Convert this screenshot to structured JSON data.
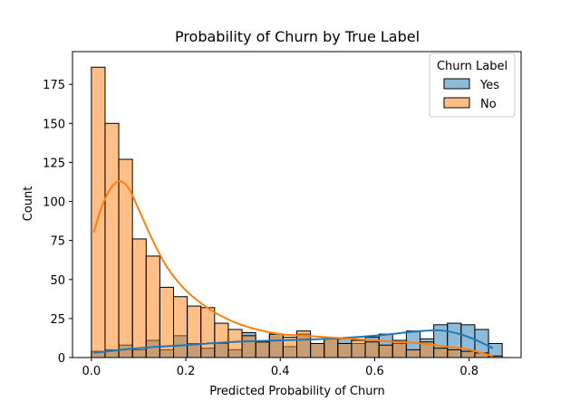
{
  "chart_data": {
    "type": "histogram",
    "title": "Probability of Churn by True Label",
    "xlabel": "Predicted Probability of Churn",
    "ylabel": "Count",
    "xlim": [
      -0.04,
      0.91
    ],
    "ylim": [
      0,
      196
    ],
    "xticks": [
      0.0,
      0.2,
      0.4,
      0.6,
      0.8
    ],
    "xtick_labels": [
      "0.0",
      "0.2",
      "0.4",
      "0.6",
      "0.8"
    ],
    "yticks": [
      0,
      25,
      50,
      75,
      100,
      125,
      150,
      175
    ],
    "ytick_labels": [
      "0",
      "25",
      "50",
      "75",
      "100",
      "125",
      "150",
      "175"
    ],
    "grid": false,
    "legend": {
      "title": "Churn Label",
      "placement": "top-right"
    },
    "bins": {
      "start": 0.0,
      "width": 0.029,
      "count": 30
    },
    "series": [
      {
        "name": "Yes",
        "color": "#1f77b4",
        "fill": "#7fb2d9",
        "counts": [
          4,
          5,
          8,
          5,
          11,
          5,
          14,
          9,
          6,
          9,
          5,
          16,
          10,
          15,
          7,
          15,
          9,
          12,
          12,
          9,
          13,
          15,
          9,
          17,
          12,
          21,
          22,
          21,
          18,
          9
        ],
        "kde": [
          [
            0.005,
            3
          ],
          [
            0.1,
            6
          ],
          [
            0.2,
            8
          ],
          [
            0.3,
            10
          ],
          [
            0.4,
            11
          ],
          [
            0.5,
            12
          ],
          [
            0.6,
            14
          ],
          [
            0.7,
            17
          ],
          [
            0.75,
            17
          ],
          [
            0.8,
            13
          ],
          [
            0.85,
            6
          ]
        ]
      },
      {
        "name": "No",
        "color": "#ff7f0e",
        "fill": "#ffbf86",
        "counts": [
          186,
          150,
          127,
          76,
          65,
          45,
          39,
          33,
          32,
          22,
          18,
          14,
          10,
          15,
          13,
          17,
          9,
          12,
          9,
          11,
          10,
          8,
          11,
          5,
          10,
          6,
          5,
          4,
          3,
          1
        ],
        "kde": [
          [
            0.005,
            80
          ],
          [
            0.02,
            95
          ],
          [
            0.04,
            108
          ],
          [
            0.06,
            113
          ],
          [
            0.08,
            108
          ],
          [
            0.1,
            95
          ],
          [
            0.13,
            75
          ],
          [
            0.16,
            58
          ],
          [
            0.2,
            43
          ],
          [
            0.25,
            31
          ],
          [
            0.3,
            23
          ],
          [
            0.35,
            18
          ],
          [
            0.4,
            15
          ],
          [
            0.45,
            14
          ],
          [
            0.5,
            13
          ],
          [
            0.55,
            12
          ],
          [
            0.6,
            11
          ],
          [
            0.65,
            10
          ],
          [
            0.7,
            9
          ],
          [
            0.75,
            7
          ],
          [
            0.8,
            5
          ],
          [
            0.85,
            1
          ]
        ]
      }
    ]
  }
}
